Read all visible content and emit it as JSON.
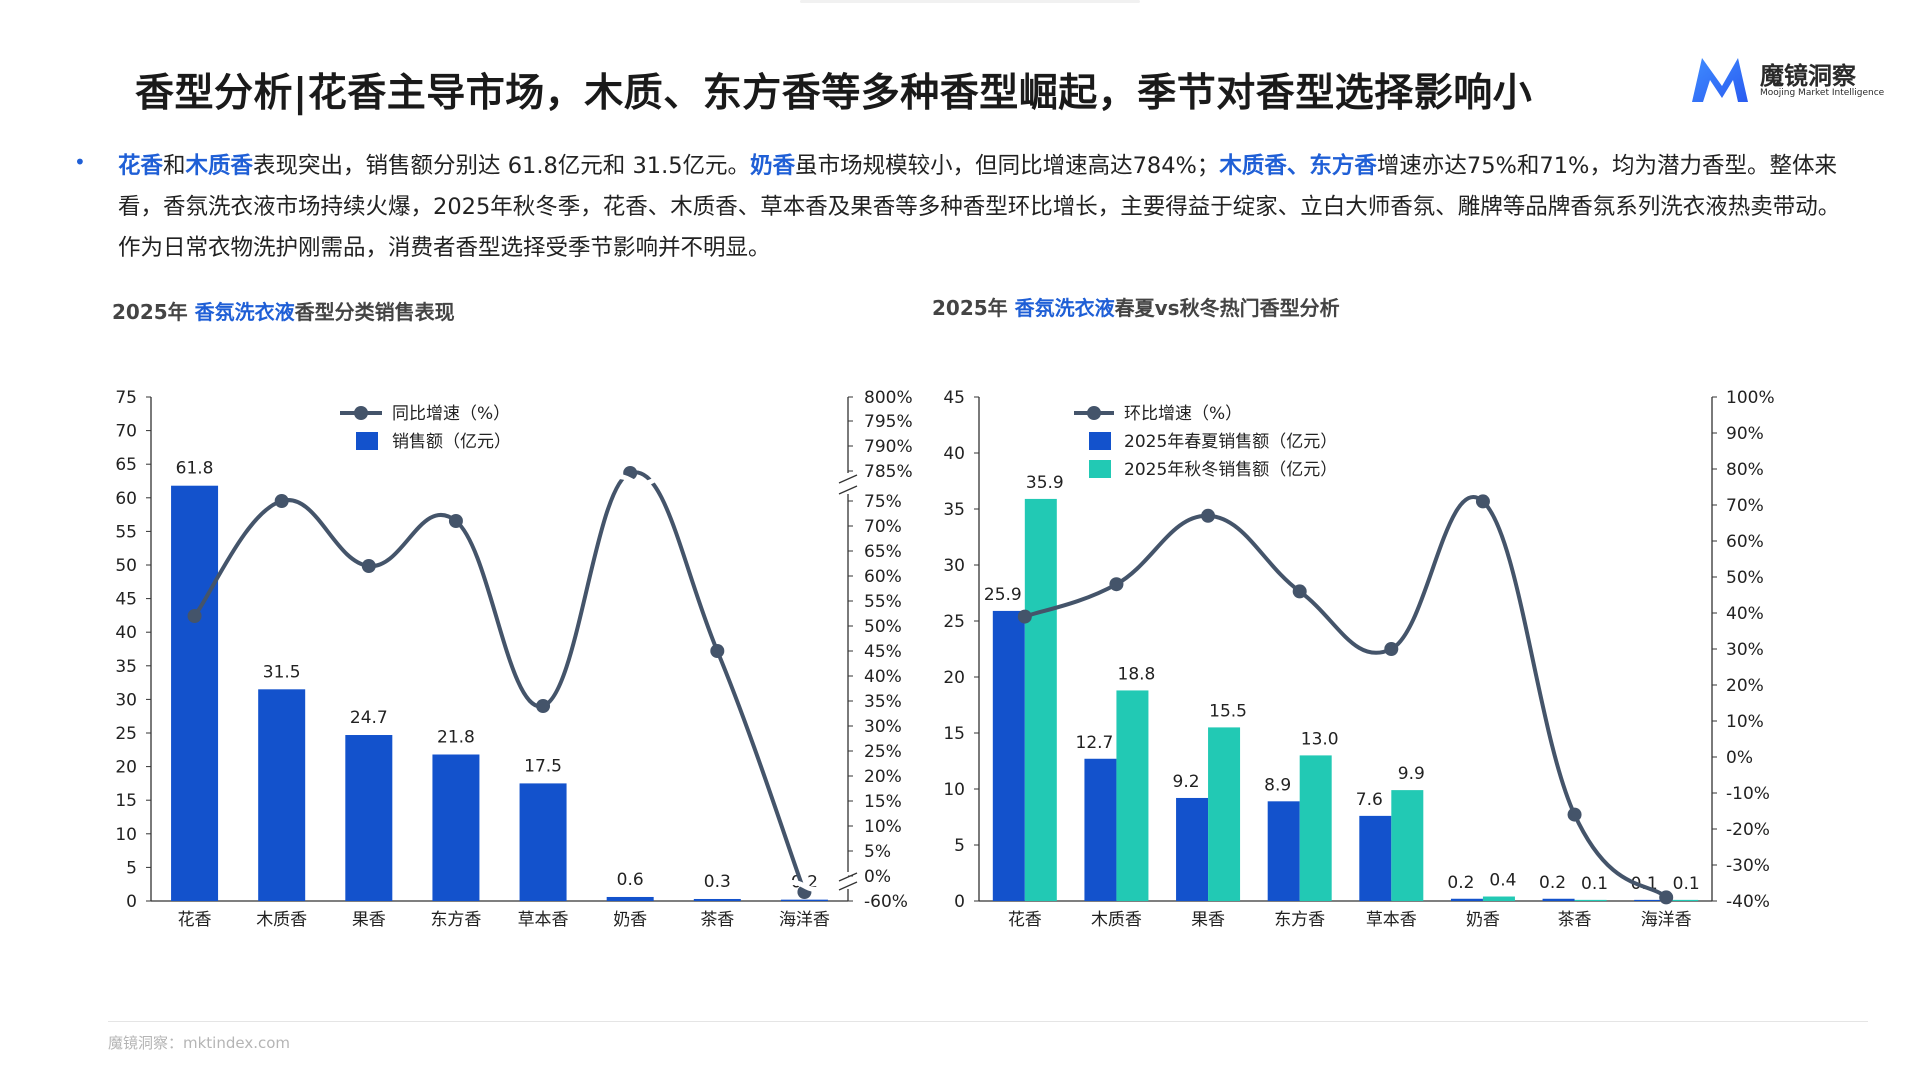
{
  "header": {
    "title": "香型分析|花香主导市场，木质、东方香等多种香型崛起，季节对香型选择影响小",
    "logo_text": "魔镜洞察",
    "logo_sub": "Moojing Market Intelligence",
    "logo_icon": "M-logo-icon",
    "brand_color": "#1f5fd6"
  },
  "summary": {
    "segments": [
      {
        "t": "花香",
        "hl": true
      },
      {
        "t": "和",
        "hl": false
      },
      {
        "t": "木质香",
        "hl": true
      },
      {
        "t": "表现突出，销售额分别达 61.8亿元和 31.5亿元。",
        "hl": false
      },
      {
        "t": "奶香",
        "hl": true
      },
      {
        "t": "虽市场规模较小，但同比增速高达784%；",
        "hl": false
      },
      {
        "t": "木质香、东方香",
        "hl": true
      },
      {
        "t": "增速亦达75%和71%，均为潜力香型。整体来看，香氛洗衣液市场持续火爆，2025年秋冬季，花香、木质香、草本香及果香等多种香型环比增长，主要得益于绽家、立白大师香氛、雕牌等品牌香氛系列洗衣液热卖带动。作为日常衣物洗护刚需品，消费者香型选择受季节影响并不明显。",
        "hl": false
      }
    ]
  },
  "left_title": {
    "pre": "2025年 ",
    "hl": "香氛洗衣液",
    "post": "香型分类销售表现"
  },
  "right_title": {
    "pre": "2025年 ",
    "hl": "香氛洗衣液",
    "post": "春夏vs秋冬热门香型分析"
  },
  "footer": "魔镜洞察：mktindex.com",
  "chart_data": [
    {
      "type": "bar",
      "categories": [
        "花香",
        "木质香",
        "果香",
        "东方香",
        "草本香",
        "奶香",
        "茶香",
        "海洋香"
      ],
      "series": [
        {
          "name": "销售额（亿元）",
          "kind": "bar",
          "axis": "left",
          "color": "#1352cc",
          "values": [
            61.8,
            31.5,
            24.7,
            21.8,
            17.5,
            0.6,
            0.3,
            0.2
          ]
        },
        {
          "name": "同比增速（%）",
          "kind": "line",
          "axis": "right",
          "color": "#44546a",
          "values": [
            52,
            75,
            62,
            71,
            34,
            784,
            45,
            -60
          ]
        }
      ],
      "y_left": {
        "min": 0,
        "max": 75,
        "ticks": [
          "0",
          "5",
          "10",
          "15",
          "20",
          "25",
          "30",
          "35",
          "40",
          "45",
          "50",
          "55",
          "60",
          "65",
          "70",
          "75"
        ]
      },
      "y_right": {
        "ticks": [
          "-60%",
          "0%",
          "5%",
          "10%",
          "15%",
          "20%",
          "25%",
          "30%",
          "35%",
          "40%",
          "45%",
          "50%",
          "55%",
          "60%",
          "65%",
          "70%",
          "75%",
          "785%",
          "790%",
          "795%",
          "800%"
        ],
        "axis_break": "between 75% and 785%, and between -60% and 0%"
      },
      "data_labels": [
        "61.8",
        "31.5",
        "24.7",
        "21.8",
        "17.5",
        "0.6",
        "0.3",
        "0.2"
      ],
      "legend": [
        "同比增速（%）",
        "销售额（亿元）"
      ],
      "legend_position": "top-left"
    },
    {
      "type": "bar",
      "categories": [
        "花香",
        "木质香",
        "果香",
        "东方香",
        "草本香",
        "奶香",
        "茶香",
        "海洋香"
      ],
      "series": [
        {
          "name": "2025年春夏销售额（亿元）",
          "kind": "bar",
          "axis": "left",
          "color": "#1352cc",
          "values": [
            25.9,
            12.7,
            9.2,
            8.9,
            7.6,
            0.2,
            0.2,
            0.1
          ]
        },
        {
          "name": "2025年秋冬销售额（亿元）",
          "kind": "bar",
          "axis": "left",
          "color": "#22c9b4",
          "values": [
            35.9,
            18.8,
            15.5,
            13.0,
            9.9,
            0.4,
            0.1,
            0.1
          ]
        },
        {
          "name": "环比增速（%）",
          "kind": "line",
          "axis": "right",
          "color": "#44546a",
          "values": [
            39,
            48,
            67,
            46,
            30,
            71,
            -16,
            -39
          ]
        }
      ],
      "y_left": {
        "min": 0,
        "max": 45,
        "ticks": [
          "0",
          "5",
          "10",
          "15",
          "20",
          "25",
          "30",
          "35",
          "40",
          "45"
        ]
      },
      "y_right": {
        "min": -40,
        "max": 100,
        "ticks": [
          "-40%",
          "-30%",
          "-20%",
          "-10%",
          "0%",
          "10%",
          "20%",
          "30%",
          "40%",
          "50%",
          "60%",
          "70%",
          "80%",
          "90%",
          "100%"
        ]
      },
      "labels_a": [
        "25.9",
        "12.7",
        "9.2",
        "8.9",
        "7.6",
        "0.2",
        "0.2",
        "0.1"
      ],
      "labels_b": [
        "35.9",
        "18.8",
        "15.5",
        "13.0",
        "9.9",
        "0.4",
        "0.1",
        "0.1"
      ],
      "legend": [
        "环比增速（%）",
        "2025年春夏销售额（亿元）",
        "2025年秋冬销售额（亿元）"
      ],
      "legend_position": "top-left"
    }
  ]
}
